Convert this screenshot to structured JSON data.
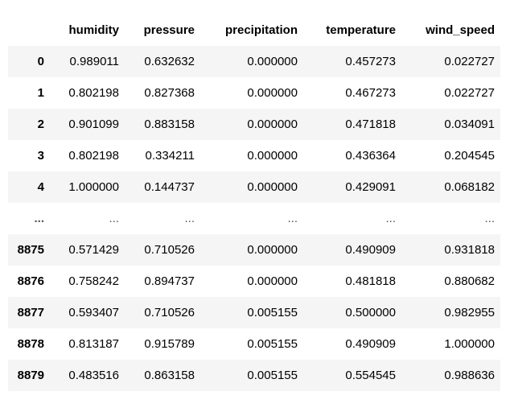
{
  "table": {
    "columns": [
      "humidity",
      "pressure",
      "precipitation",
      "temperature",
      "wind_speed"
    ],
    "rows": [
      {
        "index": "0",
        "cells": [
          "0.989011",
          "0.632632",
          "0.000000",
          "0.457273",
          "0.022727"
        ]
      },
      {
        "index": "1",
        "cells": [
          "0.802198",
          "0.827368",
          "0.000000",
          "0.467273",
          "0.022727"
        ]
      },
      {
        "index": "2",
        "cells": [
          "0.901099",
          "0.883158",
          "0.000000",
          "0.471818",
          "0.034091"
        ]
      },
      {
        "index": "3",
        "cells": [
          "0.802198",
          "0.334211",
          "0.000000",
          "0.436364",
          "0.204545"
        ]
      },
      {
        "index": "4",
        "cells": [
          "1.000000",
          "0.144737",
          "0.000000",
          "0.429091",
          "0.068182"
        ]
      },
      {
        "index": "...",
        "cells": [
          "...",
          "...",
          "...",
          "...",
          "..."
        ]
      },
      {
        "index": "8875",
        "cells": [
          "0.571429",
          "0.710526",
          "0.000000",
          "0.490909",
          "0.931818"
        ]
      },
      {
        "index": "8876",
        "cells": [
          "0.758242",
          "0.894737",
          "0.000000",
          "0.481818",
          "0.880682"
        ]
      },
      {
        "index": "8877",
        "cells": [
          "0.593407",
          "0.710526",
          "0.005155",
          "0.500000",
          "0.982955"
        ]
      },
      {
        "index": "8878",
        "cells": [
          "0.813187",
          "0.915789",
          "0.005155",
          "0.490909",
          "1.000000"
        ]
      },
      {
        "index": "8879",
        "cells": [
          "0.483516",
          "0.863158",
          "0.005155",
          "0.554545",
          "0.988636"
        ]
      }
    ]
  }
}
